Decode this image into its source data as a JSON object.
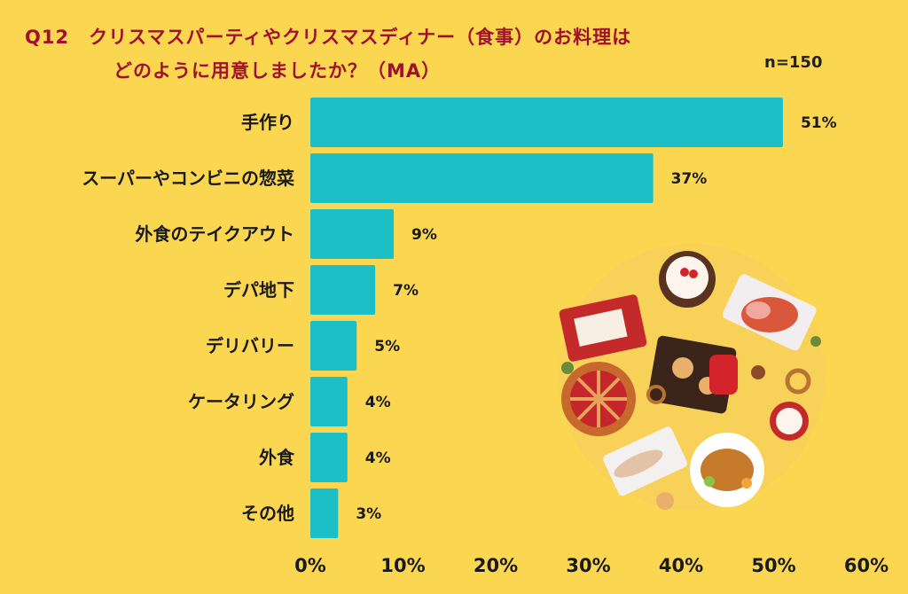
{
  "header": {
    "title_line1": "Q12　クリスマスパーティやクリスマスディナー（食事）のお料理は",
    "title_line2": "どのように用意しましたか？（MA）",
    "sample_size": "n=150"
  },
  "colors": {
    "bar": "#1cbfc6",
    "background": "#fbd650",
    "title": "#a0122c"
  },
  "illustration": {
    "icon": "christmas-food-plate-icon"
  },
  "chart_data": {
    "type": "bar",
    "orientation": "horizontal",
    "categories": [
      "手作り",
      "スーパーやコンビニの惣菜",
      "外食のテイクアウト",
      "デパ地下",
      "デリバリー",
      "ケータリング",
      "外食",
      "その他"
    ],
    "values": [
      51,
      37,
      9,
      7,
      5,
      4,
      4,
      3
    ],
    "value_labels": [
      "51%",
      "37%",
      "9%",
      "7%",
      "5%",
      "4%",
      "4%",
      "3%"
    ],
    "xlim": [
      0,
      60
    ],
    "x_ticks": [
      "0%",
      "10%",
      "20%",
      "30%",
      "40%",
      "50%",
      "60%"
    ],
    "grid": false,
    "legend": "none"
  }
}
